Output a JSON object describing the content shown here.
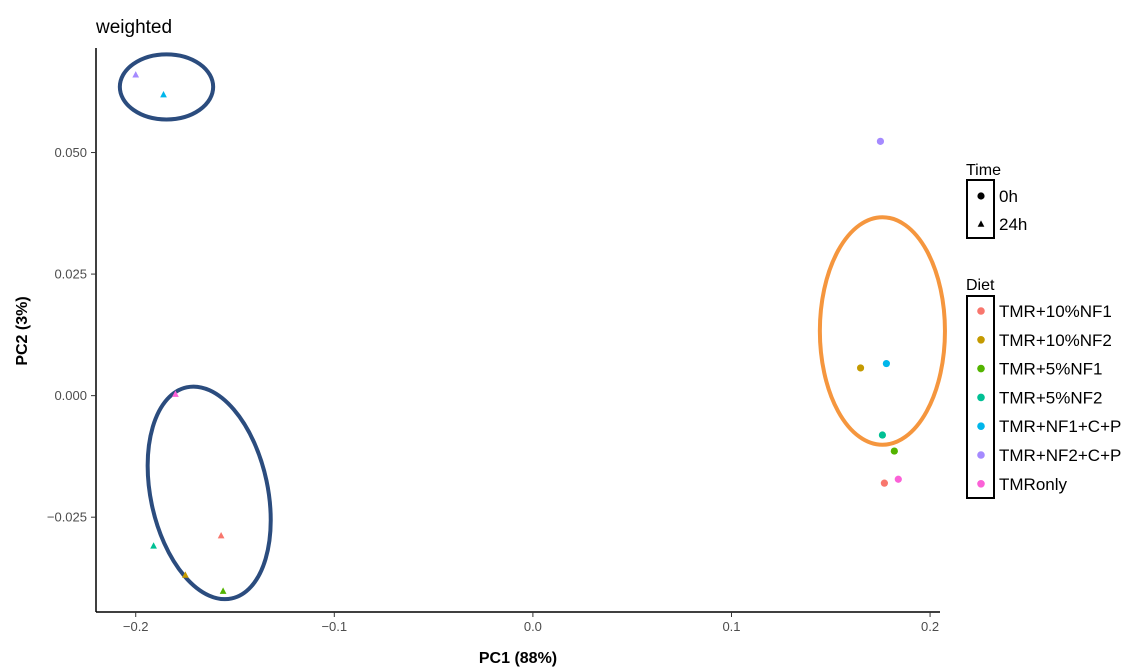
{
  "chart_data": {
    "type": "scatter",
    "title": "weighted",
    "xlabel": "PC1 (88%)",
    "ylabel": "PC2 (3%)",
    "xlim": [
      -0.22,
      0.205
    ],
    "ylim": [
      -0.0445,
      0.0715
    ],
    "grid": false,
    "x_ticks": [
      -0.2,
      -0.1,
      0.0,
      0.1,
      0.2
    ],
    "x_tick_labels": [
      "−0.2",
      "−0.1",
      "0.0",
      "0.1",
      "0.2"
    ],
    "y_ticks": [
      -0.025,
      0.0,
      0.025,
      0.05
    ],
    "y_tick_labels": [
      "−0.025",
      "0.000",
      "0.025",
      "0.050"
    ],
    "colors": {
      "TMR+10%NF1": "#F8766D",
      "TMR+10%NF2": "#C49A00",
      "TMR+5%NF1": "#53B400",
      "TMR+5%NF2": "#00C094",
      "TMR+NF1+C+P": "#00B6EB",
      "TMR+NF2+C+P": "#A58AFF",
      "TMRonly": "#FB61D7"
    },
    "points": [
      {
        "diet": "TMR+10%NF1",
        "time": "0h",
        "x": 0.177,
        "y": -0.018
      },
      {
        "diet": "TMR+10%NF2",
        "time": "0h",
        "x": 0.165,
        "y": 0.0057
      },
      {
        "diet": "TMR+5%NF1",
        "time": "0h",
        "x": 0.182,
        "y": -0.0114
      },
      {
        "diet": "TMR+5%NF2",
        "time": "0h",
        "x": 0.176,
        "y": -0.0081
      },
      {
        "diet": "TMR+NF1+C+P",
        "time": "0h",
        "x": 0.178,
        "y": 0.0066
      },
      {
        "diet": "TMR+NF2+C+P",
        "time": "0h",
        "x": 0.175,
        "y": 0.0523
      },
      {
        "diet": "TMRonly",
        "time": "0h",
        "x": 0.184,
        "y": -0.0172
      },
      {
        "diet": "TMR+10%NF1",
        "time": "24h",
        "x": -0.157,
        "y": -0.0288
      },
      {
        "diet": "TMR+10%NF2",
        "time": "24h",
        "x": -0.175,
        "y": -0.0369
      },
      {
        "diet": "TMR+5%NF1",
        "time": "24h",
        "x": -0.156,
        "y": -0.0402
      },
      {
        "diet": "TMR+5%NF2",
        "time": "24h",
        "x": -0.191,
        "y": -0.0309
      },
      {
        "diet": "TMR+NF1+C+P",
        "time": "24h",
        "x": -0.186,
        "y": 0.0619
      },
      {
        "diet": "TMR+NF2+C+P",
        "time": "24h",
        "x": -0.2,
        "y": 0.066
      },
      {
        "diet": "TMRonly",
        "time": "24h",
        "x": -0.18,
        "y": 0.0003
      }
    ],
    "ellipses": [
      {
        "cx": -0.1845,
        "cy": 0.0635,
        "rx": 0.0235,
        "ry": 0.0067,
        "rotate": 0,
        "color": "#2B4C7E"
      },
      {
        "cx": -0.163,
        "cy": -0.02,
        "rx": 0.0295,
        "ry": 0.0222,
        "rotate": -12,
        "color": "#2B4C7E"
      },
      {
        "cx": 0.176,
        "cy": 0.0133,
        "rx": 0.0315,
        "ry": 0.0234,
        "rotate": 0,
        "color": "#F5963E"
      }
    ],
    "legend": {
      "placement": "right",
      "time": {
        "title": "Time",
        "entries": [
          "0h",
          "24h"
        ]
      },
      "diet": {
        "title": "Diet",
        "entries": [
          "TMR+10%NF1",
          "TMR+10%NF2",
          "TMR+5%NF1",
          "TMR+5%NF2",
          "TMR+NF1+C+P",
          "TMR+NF2+C+P",
          "TMRonly"
        ]
      }
    }
  }
}
